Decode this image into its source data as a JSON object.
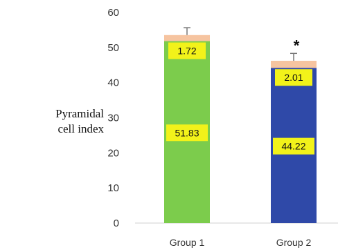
{
  "chart_data": {
    "type": "bar",
    "stacked": true,
    "categories": [
      "Group 1",
      "Group 2"
    ],
    "series": [
      {
        "values": [
          51.83,
          44.22
        ],
        "colors": [
          "#7ccc4c",
          "#2f49a8"
        ],
        "data_labels": [
          "51.83",
          "44.22"
        ]
      },
      {
        "values": [
          1.72,
          2.01
        ],
        "color": "#f6c4a0",
        "data_labels": [
          "1.72",
          "2.01"
        ]
      }
    ],
    "error_bars": [
      2.1,
      2.1
    ],
    "significance": [
      "",
      "*"
    ],
    "ylabel": [
      "Pyramidal",
      "cell index"
    ],
    "yticks": [
      "0",
      "10",
      "20",
      "30",
      "40",
      "50",
      "60"
    ],
    "ylim": [
      0,
      60
    ],
    "grid": false,
    "label_box_color": "#f2f21a"
  }
}
